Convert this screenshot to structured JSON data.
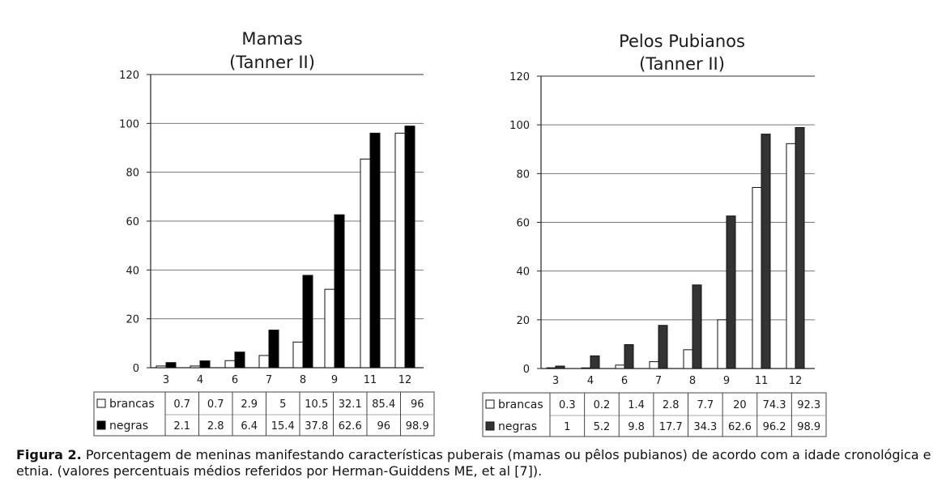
{
  "chart_data": [
    {
      "type": "bar",
      "title": "Mamas",
      "subtitle": "(Tanner II)",
      "categories": [
        "3",
        "4",
        "6",
        "7",
        "8",
        "9",
        "11",
        "12"
      ],
      "series": [
        {
          "name": "brancas",
          "values": [
            0.7,
            0.7,
            2.9,
            5,
            10.5,
            32.1,
            85.4,
            96
          ],
          "color": "#ffffff"
        },
        {
          "name": "negras",
          "values": [
            2.1,
            2.8,
            6.4,
            15.4,
            37.8,
            62.6,
            96,
            98.9
          ],
          "color": "#000000"
        }
      ],
      "table_values": [
        [
          "0.7",
          "0.7",
          "2.9",
          "5",
          "10.5",
          "32.1",
          "85.4",
          "96"
        ],
        [
          "2.1",
          "2.8",
          "6.4",
          "15.4",
          "37.8",
          "62.6",
          "96",
          "98.9"
        ]
      ],
      "yticks": [
        "0",
        "20",
        "40",
        "60",
        "80",
        "100",
        "120"
      ],
      "ylim": [
        0,
        120
      ],
      "grid": true,
      "legend": "table"
    },
    {
      "type": "bar",
      "title": "Pelos Pubianos",
      "subtitle": "(Tanner II)",
      "categories": [
        "3",
        "4",
        "6",
        "7",
        "8",
        "9",
        "11",
        "12"
      ],
      "series": [
        {
          "name": "brancas",
          "values": [
            0.3,
            0.2,
            1.4,
            2.8,
            7.7,
            20,
            74.3,
            92.3
          ],
          "color": "#ffffff"
        },
        {
          "name": "negras",
          "values": [
            1,
            5.2,
            9.8,
            17.7,
            34.3,
            62.6,
            96.2,
            98.9
          ],
          "color": "#333333"
        }
      ],
      "table_values": [
        [
          "0.3",
          "0.2",
          "1.4",
          "2.8",
          "7.7",
          "20",
          "74.3",
          "92.3"
        ],
        [
          "1",
          "5.2",
          "9.8",
          "17.7",
          "34.3",
          "62.6",
          "96.2",
          "98.9"
        ]
      ],
      "yticks": [
        "0",
        "20",
        "40",
        "60",
        "80",
        "100",
        "120"
      ],
      "ylim": [
        0,
        120
      ],
      "grid": true,
      "legend": "table"
    }
  ],
  "caption": {
    "label": "Figura 2.",
    "text": "Porcentagem de meninas manifestando características puberais (mamas ou pêlos pubianos) de acordo com a idade cronológica e etnia. (valores percentuais médios referidos por Herman-Guiddens ME, et al [7])."
  }
}
